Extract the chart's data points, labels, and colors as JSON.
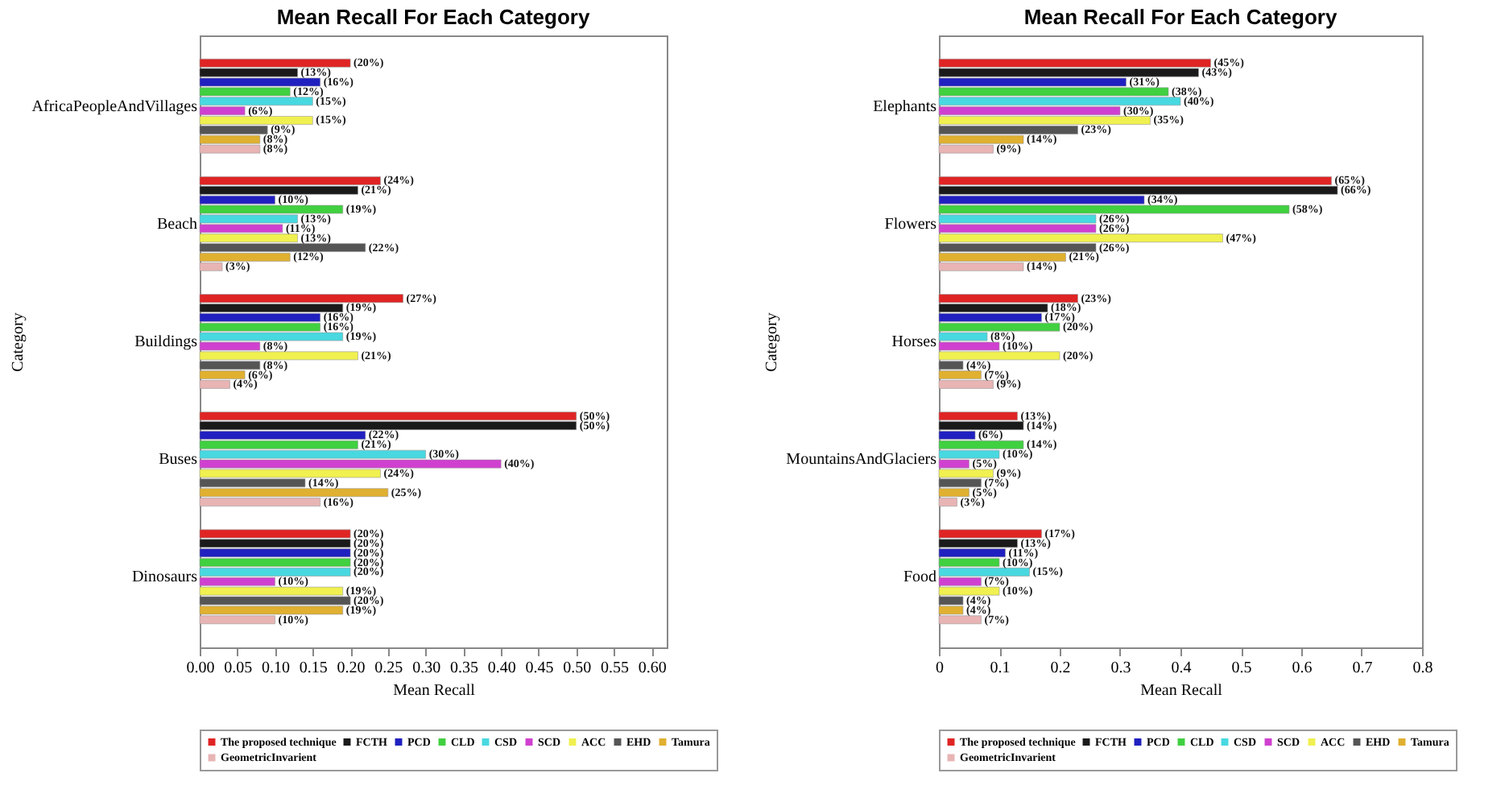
{
  "chart_data": [
    {
      "type": "bar",
      "orientation": "horizontal",
      "title": "Mean Recall For Each Category",
      "xlabel": "Mean Recall",
      "ylabel": "Category",
      "legend": "bottom",
      "categories": [
        "AfricaPeopleAndVillages",
        "Beach",
        "Buildings",
        "Buses",
        "Dinosaurs"
      ],
      "xlim": [
        0,
        0.62
      ],
      "xticks": [
        {
          "value": 0,
          "label": "0.00"
        },
        {
          "value": 0.05,
          "label": "0.05"
        },
        {
          "value": 0.1,
          "label": "0.10"
        },
        {
          "value": 0.15,
          "label": "0.15"
        },
        {
          "value": 0.2,
          "label": "0.20"
        },
        {
          "value": 0.25,
          "label": "0.25"
        },
        {
          "value": 0.3,
          "label": "0.30"
        },
        {
          "value": 0.35,
          "label": "0.35"
        },
        {
          "value": 0.4,
          "label": "0.40"
        },
        {
          "value": 0.45,
          "label": "0.45"
        },
        {
          "value": 0.5,
          "label": "0.50"
        },
        {
          "value": 0.55,
          "label": "0.55"
        },
        {
          "value": 0.6,
          "label": "0.60"
        }
      ],
      "series": [
        {
          "name": "The proposed technique",
          "color": "#e02424",
          "values": [
            0.2,
            0.24,
            0.27,
            0.5,
            0.2
          ],
          "value_labels": [
            "(20%)",
            "(24%)",
            "(27%)",
            "(50%)",
            "(20%)"
          ]
        },
        {
          "name": "FCTH",
          "color": "#1a1a1a",
          "values": [
            0.13,
            0.21,
            0.19,
            0.5,
            0.2
          ],
          "value_labels": [
            "(13%)",
            "(21%)",
            "(19%)",
            "(50%)",
            "(20%)"
          ]
        },
        {
          "name": "PCD",
          "color": "#2020c0",
          "values": [
            0.16,
            0.1,
            0.16,
            0.22,
            0.2
          ],
          "value_labels": [
            "(16%)",
            "(10%)",
            "(16%)",
            "(22%)",
            "(20%)"
          ]
        },
        {
          "name": "CLD",
          "color": "#40d040",
          "values": [
            0.12,
            0.19,
            0.16,
            0.21,
            0.2
          ],
          "value_labels": [
            "(12%)",
            "(19%)",
            "(16%)",
            "(21%)",
            "(20%)"
          ]
        },
        {
          "name": "CSD",
          "color": "#48d8e0",
          "values": [
            0.15,
            0.13,
            0.19,
            0.3,
            0.2
          ],
          "value_labels": [
            "(15%)",
            "(13%)",
            "(19%)",
            "(30%)",
            "(20%)"
          ]
        },
        {
          "name": "SCD",
          "color": "#d040d0",
          "values": [
            0.06,
            0.11,
            0.08,
            0.4,
            0.1
          ],
          "value_labels": [
            "(6%)",
            "(11%)",
            "(8%)",
            "(40%)",
            "(10%)"
          ]
        },
        {
          "name": "ACC",
          "color": "#f0f050",
          "values": [
            0.15,
            0.13,
            0.21,
            0.24,
            0.19
          ],
          "value_labels": [
            "(15%)",
            "(13%)",
            "(21%)",
            "(24%)",
            "(19%)"
          ]
        },
        {
          "name": "EHD",
          "color": "#555555",
          "values": [
            0.09,
            0.22,
            0.08,
            0.14,
            0.2
          ],
          "value_labels": [
            "(9%)",
            "(22%)",
            "(8%)",
            "(14%)",
            "(20%)"
          ]
        },
        {
          "name": "Tamura",
          "color": "#e0b030",
          "values": [
            0.08,
            0.12,
            0.06,
            0.25,
            0.19
          ],
          "value_labels": [
            "(8%)",
            "(12%)",
            "(6%)",
            "(25%)",
            "(19%)"
          ]
        },
        {
          "name": "GeometricInvarient",
          "color": "#e8b4b4",
          "values": [
            0.08,
            0.03,
            0.04,
            0.16,
            0.1
          ],
          "value_labels": [
            "(8%)",
            "(3%)",
            "(4%)",
            "(16%)",
            "(10%)"
          ]
        }
      ]
    },
    {
      "type": "bar",
      "orientation": "horizontal",
      "title": "Mean Recall For Each Category",
      "xlabel": "Mean Recall",
      "ylabel": "Category",
      "legend": "bottom",
      "categories": [
        "Elephants",
        "Flowers",
        "Horses",
        "MountainsAndGlaciers",
        "Food"
      ],
      "xlim": [
        0,
        0.8
      ],
      "xticks": [
        0,
        0.1,
        0.2,
        0.3,
        0.4,
        0.5,
        0.6,
        0.7,
        0.8
      ],
      "series": [
        {
          "name": "The proposed technique",
          "color": "#e02424",
          "values": [
            0.45,
            0.65,
            0.23,
            0.13,
            0.17
          ],
          "value_labels": [
            "(45%)",
            "(65%)",
            "(23%)",
            "(13%)",
            "(17%)"
          ]
        },
        {
          "name": "FCTH",
          "color": "#1a1a1a",
          "values": [
            0.43,
            0.66,
            0.18,
            0.14,
            0.13
          ],
          "value_labels": [
            "(43%)",
            "(66%)",
            "(18%)",
            "(14%)",
            "(13%)"
          ]
        },
        {
          "name": "PCD",
          "color": "#2020c0",
          "values": [
            0.31,
            0.34,
            0.17,
            0.06,
            0.11
          ],
          "value_labels": [
            "(31%)",
            "(34%)",
            "(17%)",
            "(6%)",
            "(11%)"
          ]
        },
        {
          "name": "CLD",
          "color": "#40d040",
          "values": [
            0.38,
            0.58,
            0.2,
            0.14,
            0.1
          ],
          "value_labels": [
            "(38%)",
            "(58%)",
            "(20%)",
            "(14%)",
            "(10%)"
          ]
        },
        {
          "name": "CSD",
          "color": "#48d8e0",
          "values": [
            0.4,
            0.26,
            0.08,
            0.1,
            0.15
          ],
          "value_labels": [
            "(40%)",
            "(26%)",
            "(8%)",
            "(10%)",
            "(15%)"
          ]
        },
        {
          "name": "SCD",
          "color": "#d040d0",
          "values": [
            0.3,
            0.26,
            0.1,
            0.05,
            0.07
          ],
          "value_labels": [
            "(30%)",
            "(26%)",
            "(10%)",
            "(5%)",
            "(7%)"
          ]
        },
        {
          "name": "ACC",
          "color": "#f0f050",
          "values": [
            0.35,
            0.47,
            0.2,
            0.09,
            0.1
          ],
          "value_labels": [
            "(35%)",
            "(47%)",
            "(20%)",
            "(9%)",
            "(10%)"
          ]
        },
        {
          "name": "EHD",
          "color": "#555555",
          "values": [
            0.23,
            0.26,
            0.04,
            0.07,
            0.04
          ],
          "value_labels": [
            "(23%)",
            "(26%)",
            "(4%)",
            "(7%)",
            "(4%)"
          ]
        },
        {
          "name": "Tamura",
          "color": "#e0b030",
          "values": [
            0.14,
            0.21,
            0.07,
            0.05,
            0.04
          ],
          "value_labels": [
            "(14%)",
            "(21%)",
            "(7%)",
            "(5%)",
            "(4%)"
          ]
        },
        {
          "name": "GeometricInvarient",
          "color": "#e8b4b4",
          "values": [
            0.09,
            0.14,
            0.09,
            0.03,
            0.07
          ],
          "value_labels": [
            "(9%)",
            "(14%)",
            "(9%)",
            "(3%)",
            "(7%)"
          ]
        }
      ]
    }
  ]
}
